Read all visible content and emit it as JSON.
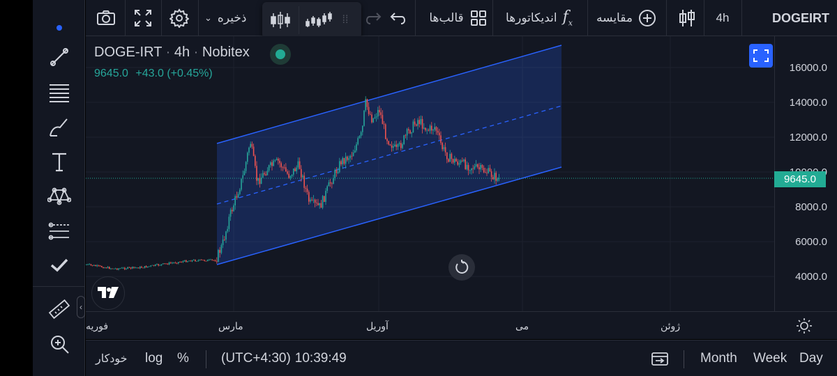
{
  "toolbar": {
    "symbol": "DOGEIRT",
    "interval": "4h",
    "compare_label": "مقایسه",
    "indicators_label": "اندیکاتورها",
    "templates_label": "قالب‌ها",
    "save_label": "ذخیره"
  },
  "legend": {
    "symbol": "DOGE-IRT",
    "interval": "4h",
    "exchange": "Nobitex",
    "last_price": "9645.0",
    "change": "+43.0",
    "change_pct": "(+0.45%)"
  },
  "price_axis": {
    "labels": [
      "16000.0",
      "14000.0",
      "12000.0",
      "10000.0",
      "8000.0",
      "6000.0",
      "4000.0"
    ],
    "current_price": "9645.0"
  },
  "time_axis": {
    "labels": [
      "فوریه",
      "مارس",
      "آوریل",
      "می",
      "ژوئن"
    ]
  },
  "bottom": {
    "ranges": [
      "Day",
      "Week",
      "Month"
    ],
    "timestamp": "10:39:49",
    "timezone": "(UTC+4:30)",
    "percent_label": "%",
    "log_label": "log",
    "auto_label": "خودکار"
  },
  "colors": {
    "up": "#26a69a",
    "down": "#ef5350",
    "channel": "#2962ff",
    "background": "#131722"
  },
  "icons": [
    "camera-icon",
    "fullscreen-icon",
    "gear-icon",
    "chevron-down-icon",
    "candles-icon",
    "bars-icon",
    "redo-icon",
    "undo-icon",
    "templates-icon",
    "fx-icon",
    "plus-circle-icon",
    "candle-type-icon",
    "trend-line-icon",
    "fib-icon",
    "brush-icon",
    "text-icon",
    "pattern-icon",
    "prediction-icon",
    "check-icon",
    "ruler-icon",
    "zoom-icon",
    "sun-icon",
    "reset-icon"
  ]
}
